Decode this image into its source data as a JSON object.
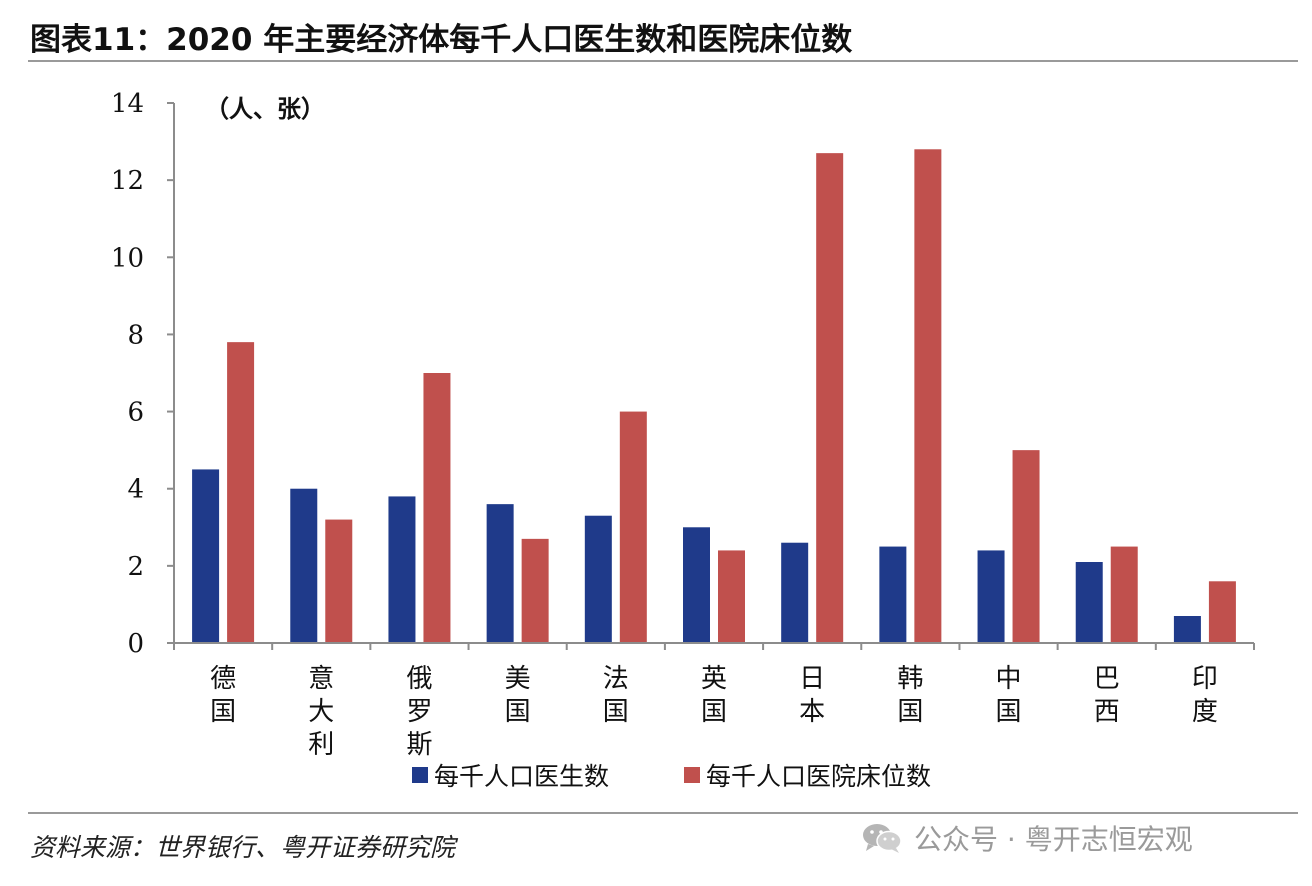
{
  "title": "图表11：2020 年主要经济体每千人口医生数和医院床位数",
  "source": "资料来源：世界银行、粤开证券研究院",
  "watermark": {
    "icon": "wechat-icon",
    "text": "公众号 · 粤开志恒宏观"
  },
  "chart_data": {
    "type": "bar",
    "title": "图表11：2020 年主要经济体每千人口医生数和医院床位数",
    "unit_label": "（人、张）",
    "xlabel": "",
    "ylabel": "",
    "ylim": [
      0,
      14
    ],
    "yticks": [
      0,
      2,
      4,
      6,
      8,
      10,
      12,
      14
    ],
    "ytick_labels": [
      "0",
      "2",
      "4",
      "6",
      "8",
      "10",
      "12",
      "14"
    ],
    "categories": [
      "德国",
      "意大利",
      "俄罗斯",
      "美国",
      "法国",
      "英国",
      "日本",
      "韩国",
      "中国",
      "巴西",
      "印度"
    ],
    "series": [
      {
        "name": "每千人口医生数",
        "color": "#1f3a8a",
        "values": [
          4.5,
          4.0,
          3.8,
          3.6,
          3.3,
          3.0,
          2.6,
          2.5,
          2.4,
          2.1,
          0.7
        ]
      },
      {
        "name": "每千人口医院床位数",
        "color": "#c0504d",
        "values": [
          7.8,
          3.2,
          7.0,
          2.7,
          6.0,
          2.4,
          12.7,
          12.8,
          5.0,
          2.5,
          1.6
        ]
      }
    ],
    "legend_position": "bottom",
    "grid": false
  }
}
